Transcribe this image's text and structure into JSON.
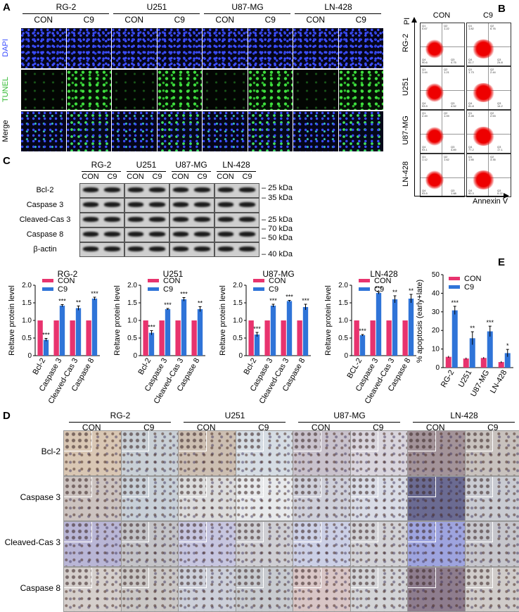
{
  "panels": {
    "A": "A",
    "B": "B",
    "C": "C",
    "D": "D",
    "E": "E"
  },
  "cell_lines": [
    "RG-2",
    "U251",
    "U87-MG",
    "LN-428"
  ],
  "conditions": [
    "CON",
    "C9"
  ],
  "panel_a": {
    "rows": [
      "DAPI",
      "TUNEL",
      "Merge"
    ]
  },
  "panel_b": {
    "y_axis": "PI",
    "x_axis": "Annexin V",
    "cells": [
      [
        {
          "q1": "0.67",
          "q2": "1.22",
          "q3": "4.75",
          "q4": "90.6"
        },
        {
          "q1": "1.82",
          "q2": "6.76",
          "q3": "24.8",
          "q4": "61.7"
        }
      ],
      [
        {
          "q1": "1.44",
          "q2": "1.21",
          "q3": "4.52",
          "q4": "93.9"
        },
        {
          "q1": "1.73",
          "q2": "2.44",
          "q3": "14.2",
          "q4": "81.8"
        }
      ],
      [
        {
          "q1": "2.49",
          "q2": "1.09",
          "q3": "4.89",
          "q4": "93.1"
        },
        {
          "q1": "2.28",
          "q2": "2.53",
          "q3": "17.1",
          "q4": "77.2"
        }
      ],
      [
        {
          "q1": "1.12",
          "q2": "1.62",
          "q3": "1.88",
          "q4": "93.5"
        },
        {
          "q1": "1.55",
          "q2": "3.35",
          "q3": "5.22",
          "q4": "90.3"
        }
      ]
    ]
  },
  "panel_c_blot": {
    "proteins": [
      "Bcl-2",
      "Caspase 3",
      "Cleaved-Cas 3",
      "Caspase 8",
      "β-actin"
    ],
    "markers": [
      "25 kDa",
      "35 kDa",
      "25 kDa",
      "70 kDa",
      "50 kDa",
      "40 kDa"
    ]
  },
  "panel_d": {
    "rows": [
      "Bcl-2",
      "Caspase 3",
      "Cleaved-Cas 3",
      "Caspase 8"
    ]
  },
  "colors": {
    "con": "#e8336e",
    "c9": "#2f74d8"
  },
  "chart_data": [
    {
      "type": "bar",
      "title": "RG-2",
      "ylabel": "Reltave protein level",
      "ylim": [
        0,
        2.0
      ],
      "yticks": [
        "0",
        "0.5",
        "1.0",
        "1.5",
        "2.0"
      ],
      "categories": [
        "Bcl-2",
        "Caspase 3",
        "Cleaved-Cas 3",
        "Caspase 8"
      ],
      "series": [
        {
          "name": "CON",
          "values": [
            1,
            1,
            1,
            1
          ]
        },
        {
          "name": "C9",
          "values": [
            0.45,
            1.42,
            1.35,
            1.62
          ]
        }
      ],
      "errors": [
        0.04,
        0.03,
        0.06,
        0.04
      ],
      "sig": [
        "***",
        "***",
        "**",
        "***"
      ]
    },
    {
      "type": "bar",
      "title": "U251",
      "ylabel": "Reltave protein level",
      "ylim": [
        0,
        2.0
      ],
      "yticks": [
        "0",
        "0.5",
        "1.0",
        "1.5",
        "2.0"
      ],
      "categories": [
        "Bcl-2",
        "Caspase 3",
        "Cleaved-Cas 3",
        "Caspase 8"
      ],
      "series": [
        {
          "name": "CON",
          "values": [
            1,
            1,
            1,
            1
          ]
        },
        {
          "name": "C9",
          "values": [
            0.65,
            1.32,
            1.6,
            1.32
          ]
        }
      ],
      "errors": [
        0.06,
        0.02,
        0.05,
        0.07
      ],
      "sig": [
        "***",
        "***",
        "***",
        "**"
      ]
    },
    {
      "type": "bar",
      "title": "U87-MG",
      "ylabel": "Reltave protein level",
      "ylim": [
        0,
        2.0
      ],
      "yticks": [
        "0",
        "0.5",
        "1.0",
        "1.5",
        "2.0"
      ],
      "categories": [
        "Bcl-2",
        "Caspase 3",
        "Cleaved-Cas 3",
        "Caspase 8"
      ],
      "series": [
        {
          "name": "CON",
          "values": [
            1,
            1,
            1,
            1
          ]
        },
        {
          "name": "C9",
          "values": [
            0.6,
            1.42,
            1.55,
            1.38
          ]
        }
      ],
      "errors": [
        0.06,
        0.04,
        0.02,
        0.08
      ],
      "sig": [
        "***",
        "***",
        "***",
        "***"
      ]
    },
    {
      "type": "bar",
      "title": "LN-428",
      "ylabel": "Reltave protein level",
      "ylim": [
        0,
        2.0
      ],
      "yticks": [
        "0",
        "0.5",
        "1.0",
        "1.5",
        "2.0"
      ],
      "categories": [
        "BCL-2",
        "Caspase 3",
        "Cleaved-Cas 3",
        "Caspase 8"
      ],
      "series": [
        {
          "name": "CON",
          "values": [
            1,
            1,
            1,
            1
          ]
        },
        {
          "name": "C9",
          "values": [
            0.58,
            1.78,
            1.6,
            1.62
          ]
        }
      ],
      "errors": [
        0.02,
        0.03,
        0.1,
        0.12
      ],
      "sig": [
        "***",
        "***",
        "**",
        "**"
      ]
    },
    {
      "type": "bar",
      "title": "",
      "ylabel": "% apoptosis (early+late)",
      "ylim": [
        0,
        50
      ],
      "yticks": [
        "0",
        "10",
        "20",
        "30",
        "40",
        "50"
      ],
      "categories": [
        "RG-2",
        "U251",
        "U87-MG",
        "LN-428"
      ],
      "series": [
        {
          "name": "CON",
          "values": [
            5.8,
            4.9,
            5.2,
            3.0
          ]
        },
        {
          "name": "C9",
          "values": [
            30.8,
            15.8,
            19.5,
            7.8
          ]
        }
      ],
      "errors": [
        2.2,
        3.5,
        2.8,
        2.0
      ],
      "sig": [
        "***",
        "**",
        "***",
        "*"
      ]
    }
  ]
}
